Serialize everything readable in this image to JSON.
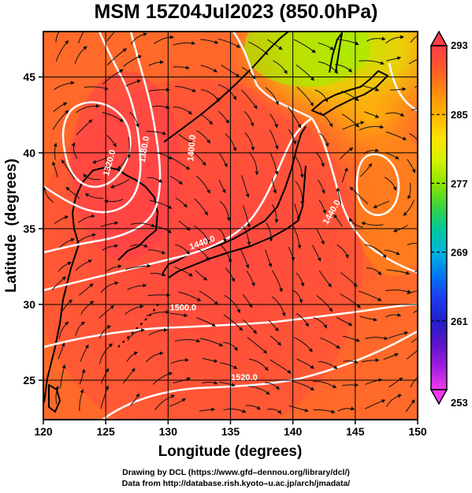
{
  "title": "MSM 15Z04Jul2023 (850.0hPa)",
  "map": {
    "x_label": "Longitude (degrees)",
    "y_label": "Latitude  (degrees)",
    "lon_range": [
      120,
      150
    ],
    "lat_range": [
      22.4,
      48
    ],
    "x_ticks": [
      {
        "value": 120,
        "label": "120"
      },
      {
        "value": 125,
        "label": "125"
      },
      {
        "value": 130,
        "label": "130"
      },
      {
        "value": 135,
        "label": "135"
      },
      {
        "value": 140,
        "label": "140"
      },
      {
        "value": 145,
        "label": "145"
      },
      {
        "value": 150,
        "label": "150"
      }
    ],
    "y_ticks": [
      {
        "value": 25,
        "label": "25"
      },
      {
        "value": 30,
        "label": "30"
      },
      {
        "value": 35,
        "label": "35"
      },
      {
        "value": 40,
        "label": "40"
      },
      {
        "value": 45,
        "label": "45"
      }
    ],
    "grid": true,
    "contour_labels": [
      {
        "text": "1320.0",
        "lon": 125.5,
        "lat": 39.3,
        "angle": -75
      },
      {
        "text": "1380.0",
        "lon": 128.3,
        "lat": 40.2,
        "angle": -80
      },
      {
        "text": "1400.0",
        "lon": 132.1,
        "lat": 40.3,
        "angle": -85
      },
      {
        "text": "1440.0",
        "lon": 132.8,
        "lat": 33.9,
        "angle": -20
      },
      {
        "text": "1500.0",
        "lon": 131.2,
        "lat": 29.6,
        "angle": 0
      },
      {
        "text": "1520.0",
        "lon": 136.1,
        "lat": 25.0,
        "angle": 0
      },
      {
        "text": "1440.0",
        "lon": 143.3,
        "lat": 36.0,
        "angle": -60
      }
    ]
  },
  "colorbar": {
    "labels": [
      "293",
      "285",
      "277",
      "269",
      "261",
      "253"
    ],
    "units_min": 253,
    "units_max": 293,
    "colors": [
      "#ff3c4a",
      "#ff5a28",
      "#ff8a10",
      "#ffb400",
      "#ffe000",
      "#d6f200",
      "#8ee400",
      "#3cd43c",
      "#00c89a",
      "#00b4e0",
      "#0078f0",
      "#1e3cf0",
      "#2020c8",
      "#5a14c8",
      "#a01ee0",
      "#f03cf0"
    ]
  },
  "credits": {
    "line1": "Drawing by DCL (https://www.gfd–dennou.org/library/dcl/)",
    "line2": "Data from http://database.rish.kyoto–u.ac.jp/arch/jmadata/"
  }
}
